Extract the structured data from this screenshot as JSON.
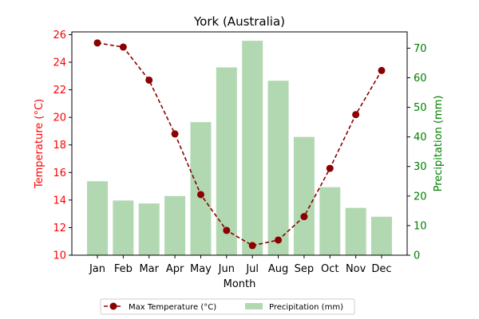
{
  "chart_data": {
    "type": "bar+line",
    "title": "York (Australia)",
    "xlabel": "Month",
    "ylabel_left": "Temperature (°C)",
    "ylabel_right": "Precipitation (mm)",
    "categories": [
      "Jan",
      "Feb",
      "Mar",
      "Apr",
      "May",
      "Jun",
      "Jul",
      "Aug",
      "Sep",
      "Oct",
      "Nov",
      "Dec"
    ],
    "series": [
      {
        "name": "Max Temperature (°C)",
        "type": "line",
        "axis": "left",
        "values": [
          25.4,
          25.1,
          22.7,
          18.8,
          14.4,
          11.8,
          10.7,
          11.1,
          12.8,
          16.3,
          20.2,
          23.4
        ]
      },
      {
        "name": "Precipitation (mm)",
        "type": "bar",
        "axis": "right",
        "values": [
          25,
          18.5,
          17.5,
          20,
          45,
          63.5,
          72.5,
          59,
          40,
          23,
          16,
          13
        ]
      }
    ],
    "ylim_left": [
      10,
      26.2
    ],
    "yticks_left": [
      10,
      12,
      14,
      16,
      18,
      20,
      22,
      24,
      26
    ],
    "ylim_right": [
      0,
      75.5
    ],
    "yticks_right": [
      0,
      10,
      20,
      30,
      40,
      50,
      60,
      70
    ],
    "grid": false,
    "legend_position": "bottom-center",
    "colors": {
      "line": "#8b0000",
      "bar": "#b2d8b2",
      "left_axis": "#ff0000",
      "right_axis": "#008000"
    }
  }
}
